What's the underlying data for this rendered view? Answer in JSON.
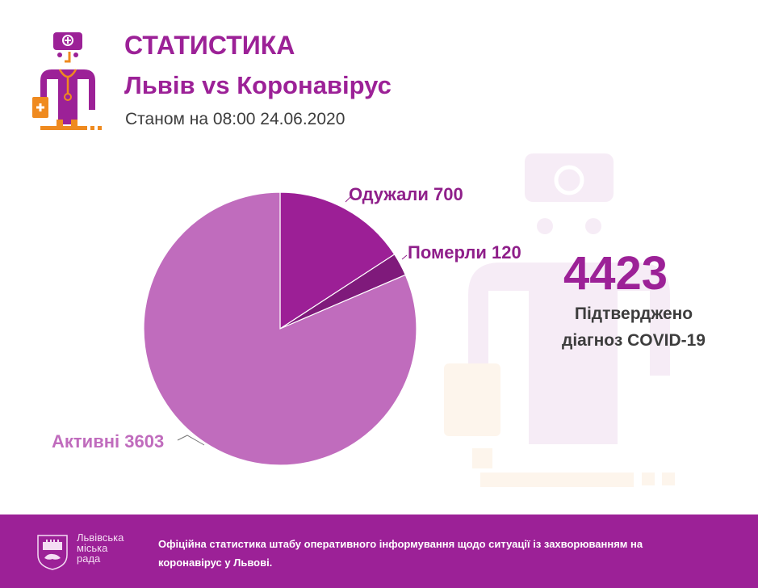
{
  "header": {
    "title": "СТАТИСТИКА",
    "subtitle": "Львів vs Коронавірус",
    "date_line": "Станом на 08:00 24.06.2020"
  },
  "icons": {
    "logo": "doctor-icon",
    "watermark": "doctor-watermark-icon",
    "crest": "lviv-coat-of-arms-icon"
  },
  "colors": {
    "brand_purple": "#9c2197",
    "active_slice": "#c06cbd",
    "recovered_slice": "#9c1f96",
    "died_slice": "#7f1a7b",
    "accent_orange": "#ef8a1f",
    "text_dark": "#3d3d3d"
  },
  "labels": {
    "recovered": "Одужали 700",
    "died": "Померли 120",
    "active": "Активні 3603"
  },
  "summary": {
    "total": "4423",
    "caption_line1": "Підтверджено",
    "caption_line2": "діагноз COVID-19"
  },
  "footer": {
    "org_line1": "Львівська",
    "org_line2": "міська",
    "org_line3": "рада",
    "text": "Офіційна статистика штабу оперативного інформування щодо ситуації із захворюванням на коронавірус у Львові."
  },
  "chart_data": {
    "type": "pie",
    "title": "Львів vs Коронавірус",
    "subtitle": "Станом на 08:00 24.06.2020",
    "categories": [
      "Одужали",
      "Померли",
      "Активні"
    ],
    "values": [
      700,
      120,
      3603
    ],
    "colors": [
      "#9c1f96",
      "#7f1a7b",
      "#c06cbd"
    ],
    "total": 4423,
    "total_label": "Підтверджено діагноз COVID-19",
    "start_angle": "12 o'clock, clockwise",
    "legend": "none (leader-line labels)"
  }
}
